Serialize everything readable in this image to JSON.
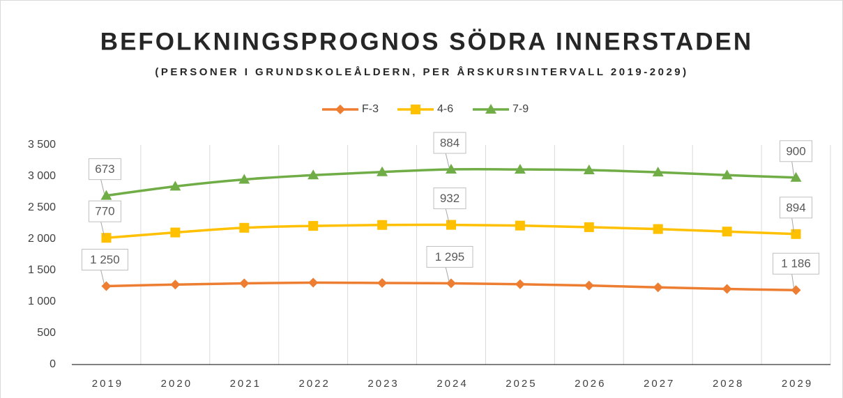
{
  "chart_data": {
    "type": "line",
    "stacked": true,
    "title": "BEFOLKNINGSPROGNOS SÖDRA INNERSTADEN",
    "subtitle": "(PERSONER I GRUNDSKOLEÅLDERN, PER ÅRSKURSINTERVALL 2019-2029)",
    "categories": [
      "2019",
      "2020",
      "2021",
      "2022",
      "2023",
      "2024",
      "2025",
      "2026",
      "2027",
      "2028",
      "2029"
    ],
    "series": [
      {
        "name": "F-3",
        "color": "#ed7d31",
        "marker": "diamond",
        "values": [
          1250,
          1275,
          1295,
          1305,
          1300,
          1295,
          1280,
          1260,
          1230,
          1205,
          1186
        ],
        "value_labels": [
          "1 250",
          null,
          null,
          null,
          null,
          "1 295",
          null,
          null,
          null,
          null,
          "1 186"
        ]
      },
      {
        "name": "4-6",
        "color": "#ffc000",
        "marker": "square",
        "values": [
          770,
          830,
          885,
          905,
          925,
          932,
          935,
          930,
          930,
          915,
          894
        ],
        "value_labels": [
          "770",
          null,
          null,
          null,
          null,
          "932",
          null,
          null,
          null,
          null,
          "894"
        ]
      },
      {
        "name": "7-9",
        "color": "#70ad47",
        "marker": "triangle",
        "values": [
          673,
          735,
          770,
          810,
          845,
          884,
          895,
          910,
          905,
          900,
          900
        ],
        "value_labels": [
          "673",
          null,
          null,
          null,
          null,
          "884",
          null,
          null,
          null,
          null,
          "900"
        ]
      }
    ],
    "ylim": [
      0,
      3500
    ],
    "yticks": [
      0,
      500,
      {
        "value": 1000,
        "label": "1 000"
      },
      {
        "value": 1500,
        "label": "1 500"
      },
      {
        "value": 2000,
        "label": "2 000"
      },
      {
        "value": 2500,
        "label": "2 500"
      },
      {
        "value": 3000,
        "label": "3 000"
      },
      {
        "value": 3500,
        "label": "3 500"
      }
    ],
    "legend": "top"
  }
}
